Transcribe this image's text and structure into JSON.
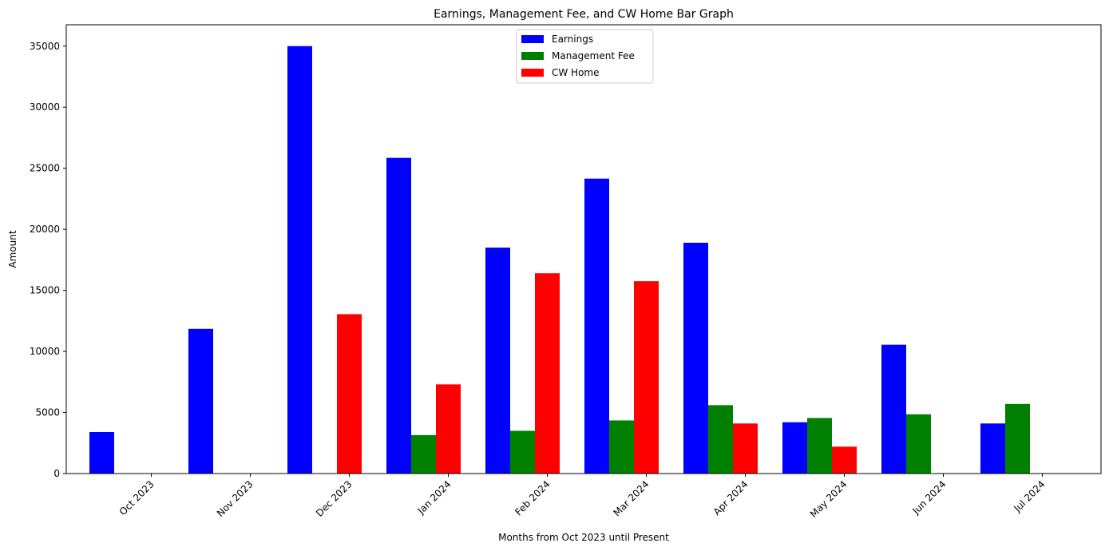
{
  "chart_data": {
    "type": "bar",
    "title": "Earnings, Management Fee, and CW Home Bar Graph",
    "xlabel": "Months from Oct 2023 until Present",
    "ylabel": "Amount",
    "categories": [
      "Oct 2023",
      "Nov 2023",
      "Dec 2023",
      "Jan 2024",
      "Feb 2024",
      "Mar 2024",
      "Apr 2024",
      "May 2024",
      "Jun 2024",
      "Jul 2024"
    ],
    "ylim": [
      0,
      36750
    ],
    "yticks": [
      0,
      5000,
      10000,
      15000,
      20000,
      25000,
      30000,
      35000
    ],
    "ytick_labels": [
      "0",
      "5000",
      "10000",
      "15000",
      "20000",
      "25000",
      "30000",
      "35000"
    ],
    "legend_position": "top-center",
    "grid": false,
    "series": [
      {
        "name": "Earnings",
        "color": "#0000ff",
        "values": [
          3400,
          11850,
          35000,
          25850,
          18500,
          24150,
          18900,
          4200,
          10550,
          4100
        ]
      },
      {
        "name": "Management Fee",
        "color": "#008000",
        "values": [
          0,
          0,
          0,
          3150,
          3500,
          4350,
          5600,
          4550,
          4850,
          5700
        ]
      },
      {
        "name": "CW Home",
        "color": "#ff0000",
        "values": [
          0,
          0,
          13050,
          7300,
          16400,
          15750,
          4100,
          2200,
          0,
          0
        ]
      }
    ]
  }
}
